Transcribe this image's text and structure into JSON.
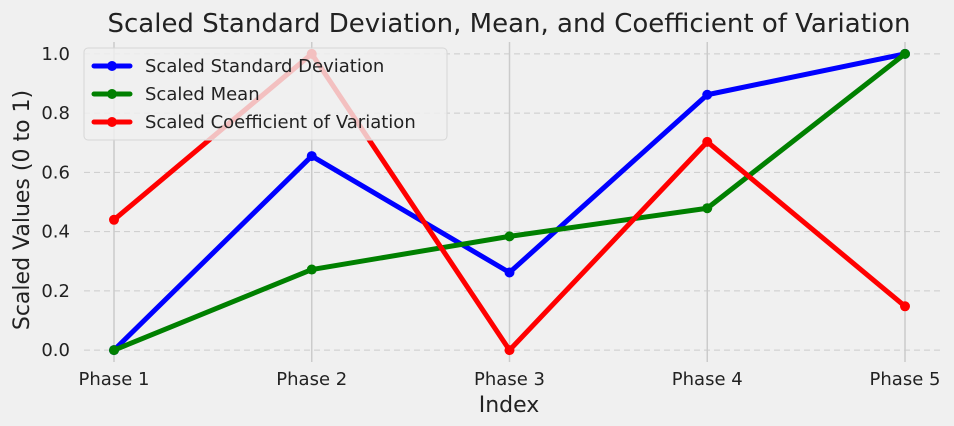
{
  "chart_data": {
    "type": "line",
    "title": "Scaled Standard Deviation, Mean, and Coefficient of Variation",
    "xlabel": "Index",
    "ylabel": "Scaled Values (0 to 1)",
    "categories": [
      "Phase 1",
      "Phase 2",
      "Phase 3",
      "Phase 4",
      "Phase 5"
    ],
    "yticks": [
      "0.0",
      "0.2",
      "0.4",
      "0.6",
      "0.8",
      "1.0"
    ],
    "ylim": [
      -0.04,
      1.04
    ],
    "grid": "on",
    "legend_position": "top-left",
    "series": [
      {
        "name": "Scaled Standard Deviation",
        "color": "#0000ff",
        "values": [
          0.0,
          0.655,
          0.262,
          0.862,
          1.0
        ]
      },
      {
        "name": "Scaled Mean",
        "color": "#008000",
        "values": [
          0.0,
          0.272,
          0.384,
          0.479,
          1.0
        ]
      },
      {
        "name": "Scaled Coefficient of Variation",
        "color": "#ff0000",
        "values": [
          0.44,
          1.0,
          0.0,
          0.703,
          0.148
        ]
      }
    ]
  }
}
